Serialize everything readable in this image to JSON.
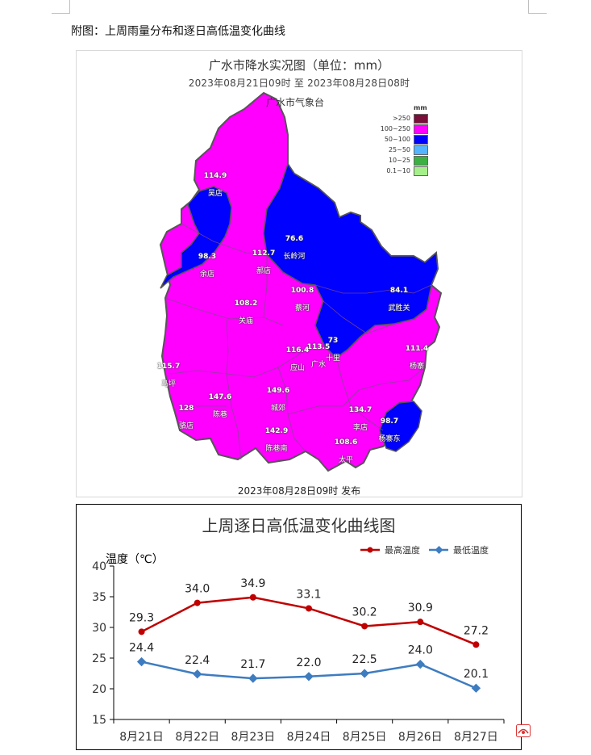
{
  "caption": "附图：上周雨量分布和逐日高低温变化曲线",
  "map": {
    "title": "广水市降水实况图（单位：mm）",
    "period": "2023年08月21日09时  至  2023年08月28日08时",
    "source": "广水市气象台",
    "issued": "2023年08月28日09时 发布",
    "legend_unit": "mm",
    "legend": [
      {
        "label": ">250",
        "color": "#7a0f3a"
      },
      {
        "label": "100~250",
        "color": "#ff00ff"
      },
      {
        "label": "50~100",
        "color": "#0000ff"
      },
      {
        "label": "25~50",
        "color": "#55b4ff"
      },
      {
        "label": "10~25",
        "color": "#3cb043"
      },
      {
        "label": "0.1~10",
        "color": "#a6f08c"
      }
    ],
    "stations": [
      {
        "value": "114.9",
        "name": "吴店"
      },
      {
        "value": "98.3",
        "name": "余店"
      },
      {
        "value": "76.6",
        "name": "长岭河"
      },
      {
        "value": "112.7",
        "name": "郝店"
      },
      {
        "value": "100.8",
        "name": "蔡河"
      },
      {
        "value": "108.2",
        "name": "关庙"
      },
      {
        "value": "84.1",
        "name": "武胜关"
      },
      {
        "value": "73",
        "name": "十里"
      },
      {
        "value": "113.5",
        "name": "广水"
      },
      {
        "value": "116.4",
        "name": "应山"
      },
      {
        "value": "111.4",
        "name": "杨寨"
      },
      {
        "value": "115.7",
        "name": "马坪"
      },
      {
        "value": "128",
        "name": "骆店"
      },
      {
        "value": "147.6",
        "name": "陈巷"
      },
      {
        "value": "149.6",
        "name": "城郊"
      },
      {
        "value": "134.7",
        "name": "李店"
      },
      {
        "value": "98.7",
        "name": "杨寨东"
      },
      {
        "value": "142.9",
        "name": "陈巷南"
      },
      {
        "value": "108.6",
        "name": "太平"
      }
    ]
  },
  "chart_data": {
    "type": "line",
    "title": "上周逐日高低温变化曲线图",
    "ylabel": "温度（℃）",
    "ylim": [
      15,
      40
    ],
    "yticks": [
      "15",
      "20",
      "25",
      "30",
      "35",
      "40"
    ],
    "categories": [
      "8月21日",
      "8月22日",
      "8月23日",
      "8月24日",
      "8月25日",
      "8月26日",
      "8月27日"
    ],
    "series": [
      {
        "name": "最高温度",
        "color": "#c00000",
        "values": [
          29.3,
          34.0,
          34.9,
          33.1,
          30.2,
          30.9,
          27.2
        ],
        "labels": [
          "29.3",
          "34.0",
          "34.9",
          "33.1",
          "30.2",
          "30.9",
          "27.2"
        ]
      },
      {
        "name": "最低温度",
        "color": "#3e7cc0",
        "values": [
          24.4,
          22.4,
          21.7,
          22.0,
          22.5,
          24.0,
          20.1
        ],
        "labels": [
          "24.4",
          "22.4",
          "21.7",
          "22.0",
          "22.5",
          "24.0",
          "20.1"
        ]
      }
    ],
    "legend_position": "top-right",
    "grid": false
  }
}
